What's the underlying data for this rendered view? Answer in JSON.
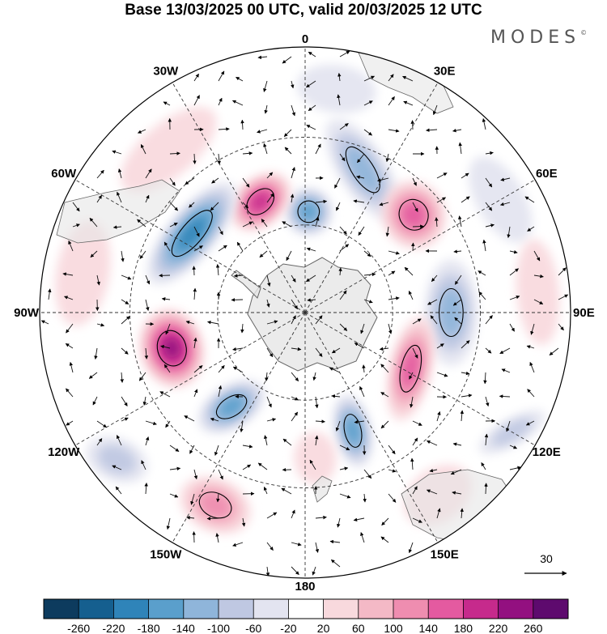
{
  "title": "Base 13/03/2025 00 UTC, valid 20/03/2025 12 UTC",
  "brand": "MODES",
  "brand_mark": "©",
  "longitude_labels": [
    {
      "name": "lon-0",
      "text": "0",
      "lon": 0
    },
    {
      "name": "lon-30e",
      "text": "30E",
      "lon": 30
    },
    {
      "name": "lon-60e",
      "text": "60E",
      "lon": 60
    },
    {
      "name": "lon-90e",
      "text": "90E",
      "lon": 90
    },
    {
      "name": "lon-120e",
      "text": "120E",
      "lon": 120
    },
    {
      "name": "lon-150e",
      "text": "150E",
      "lon": 150
    },
    {
      "name": "lon-180",
      "text": "180",
      "lon": 180
    },
    {
      "name": "lon-150w",
      "text": "150W",
      "lon": -150
    },
    {
      "name": "lon-120w",
      "text": "120W",
      "lon": -120
    },
    {
      "name": "lon-90w",
      "text": "90W",
      "lon": -90
    },
    {
      "name": "lon-60w",
      "text": "60W",
      "lon": -60
    },
    {
      "name": "lon-30w",
      "text": "30W",
      "lon": -30
    }
  ],
  "vector_reference": {
    "label": "30"
  },
  "colorbar": {
    "levels": [
      "-260",
      "-220",
      "-180",
      "-140",
      "-100",
      "-60",
      "-20",
      "20",
      "60",
      "100",
      "140",
      "180",
      "220",
      "260"
    ],
    "colors": [
      "#0d3b5e",
      "#155f8f",
      "#2f84b9",
      "#5a9fcc",
      "#8fb5da",
      "#bfc8e2",
      "#e3e4f0",
      "#ffffff",
      "#f8d9dd",
      "#f4b9c6",
      "#ef8db0",
      "#e45aa0",
      "#c62a8c",
      "#931080",
      "#5e0a6e"
    ]
  },
  "chart_data": {
    "type": "heatmap",
    "projection": "south polar stereographic",
    "anomalies": [
      {
        "name": "blob-1",
        "lon": 22,
        "r": 0.58,
        "value": -150,
        "sx": 0.22,
        "sy": 0.09,
        "rot": 35
      },
      {
        "name": "blob-2",
        "lon": 2,
        "r": 0.38,
        "value": -170,
        "sx": 0.09,
        "sy": 0.09,
        "rot": 0
      },
      {
        "name": "blob-3",
        "lon": -22,
        "r": 0.45,
        "value": 200,
        "sx": 0.13,
        "sy": 0.09,
        "rot": -20
      },
      {
        "name": "blob-4",
        "lon": -55,
        "r": 0.52,
        "value": -200,
        "sx": 0.24,
        "sy": 0.09,
        "rot": 5
      },
      {
        "name": "blob-5",
        "lon": -105,
        "r": 0.52,
        "value": 260,
        "sx": 0.15,
        "sy": 0.12,
        "rot": 0
      },
      {
        "name": "blob-6",
        "lon": -142,
        "r": 0.45,
        "value": -180,
        "sx": 0.08,
        "sy": 0.14,
        "rot": 20
      },
      {
        "name": "blob-7",
        "lon": -155,
        "r": 0.8,
        "value": 140,
        "sx": 0.14,
        "sy": 0.1,
        "rot": 0
      },
      {
        "name": "blob-8",
        "lon": -128,
        "r": 0.9,
        "value": -90,
        "sx": 0.12,
        "sy": 0.08,
        "rot": -30
      },
      {
        "name": "blob-9",
        "lon": 48,
        "r": 0.55,
        "value": 190,
        "sx": 0.13,
        "sy": 0.12,
        "rot": 15
      },
      {
        "name": "blob-10",
        "lon": 90,
        "r": 0.55,
        "value": -140,
        "sx": 0.2,
        "sy": 0.1,
        "rot": 0
      },
      {
        "name": "blob-11",
        "lon": 118,
        "r": 0.45,
        "value": 190,
        "sx": 0.2,
        "sy": 0.08,
        "rot": -15
      },
      {
        "name": "blob-12",
        "lon": 158,
        "r": 0.48,
        "value": -180,
        "sx": 0.07,
        "sy": 0.14,
        "rot": 10
      },
      {
        "name": "blob-13",
        "lon": 176,
        "r": 0.55,
        "value": 70,
        "sx": 0.08,
        "sy": 0.1,
        "rot": 0
      },
      {
        "name": "blob-14",
        "lon": 144,
        "r": 0.85,
        "value": 60,
        "sx": 0.14,
        "sy": 0.1,
        "rot": 0
      },
      {
        "name": "blob-15",
        "lon": 120,
        "r": 0.9,
        "value": -80,
        "sx": 0.14,
        "sy": 0.05,
        "rot": 30
      },
      {
        "name": "blob-16",
        "lon": -80,
        "r": 0.85,
        "value": 60,
        "sx": 0.2,
        "sy": 0.1,
        "rot": 0
      },
      {
        "name": "blob-17",
        "lon": 60,
        "r": 0.85,
        "value": -40,
        "sx": 0.18,
        "sy": 0.09,
        "rot": 0
      },
      {
        "name": "blob-18",
        "lon": -40,
        "r": 0.8,
        "value": 50,
        "sx": 0.22,
        "sy": 0.1,
        "rot": 0
      },
      {
        "name": "blob-19",
        "lon": 8,
        "r": 0.85,
        "value": -40,
        "sx": 0.15,
        "sy": 0.09,
        "rot": 0
      },
      {
        "name": "blob-20",
        "lon": 85,
        "r": 0.88,
        "value": 60,
        "sx": 0.2,
        "sy": 0.08,
        "rot": 0
      }
    ]
  }
}
